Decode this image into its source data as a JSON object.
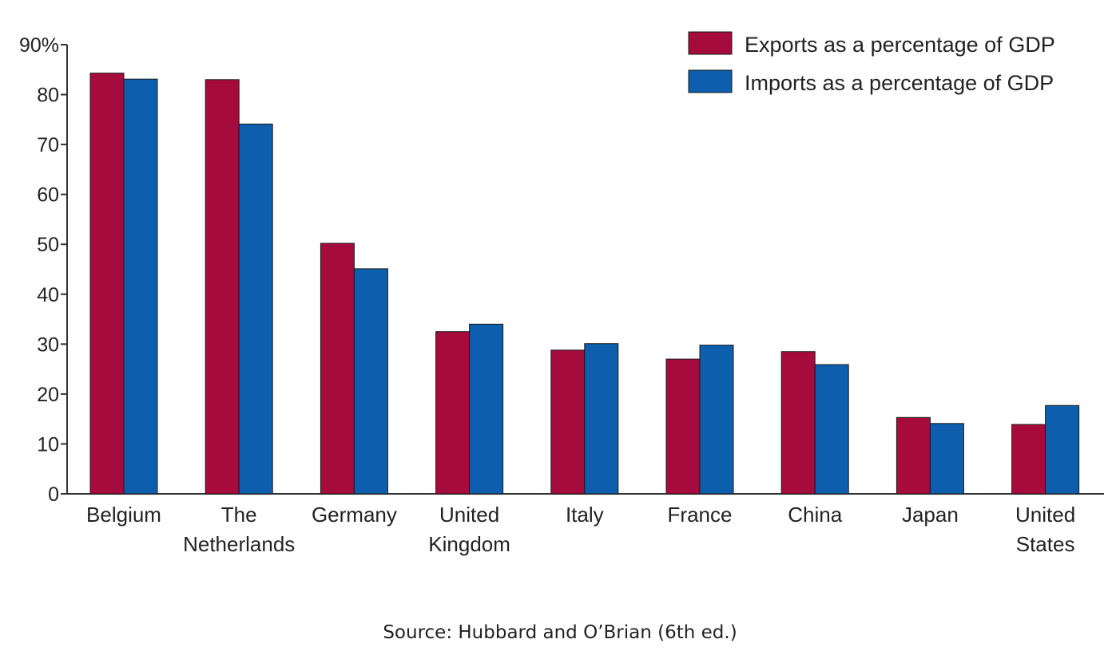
{
  "chart_data": {
    "type": "bar",
    "title": "",
    "xlabel": "",
    "ylabel": "",
    "ylim": [
      0,
      90
    ],
    "yticks": [
      0,
      10,
      20,
      30,
      40,
      50,
      60,
      70,
      80,
      90
    ],
    "ytick_labels": [
      "0",
      "10",
      "20",
      "30",
      "40",
      "50",
      "60",
      "70",
      "80",
      "90%"
    ],
    "categories": [
      [
        "Belgium"
      ],
      [
        "The",
        "Netherlands"
      ],
      [
        "Germany"
      ],
      [
        "United",
        "Kingdom"
      ],
      [
        "Italy"
      ],
      [
        "France"
      ],
      [
        "China"
      ],
      [
        "Japan"
      ],
      [
        "United",
        "States"
      ]
    ],
    "series": [
      {
        "name": "Exports as a percentage of GDP",
        "color": "#a50b3c",
        "values": [
          84.3,
          83.0,
          50.2,
          32.5,
          28.8,
          27.0,
          28.5,
          15.3,
          13.9
        ]
      },
      {
        "name": "Imports as a percentage of GDP",
        "color": "#0d5fae",
        "values": [
          83.1,
          74.1,
          45.1,
          34.0,
          30.1,
          29.8,
          25.9,
          14.1,
          17.7
        ]
      }
    ],
    "legend_position": "top-right",
    "grid": false
  },
  "source_text": "Source: Hubbard and O’Brian (6th ed.)"
}
